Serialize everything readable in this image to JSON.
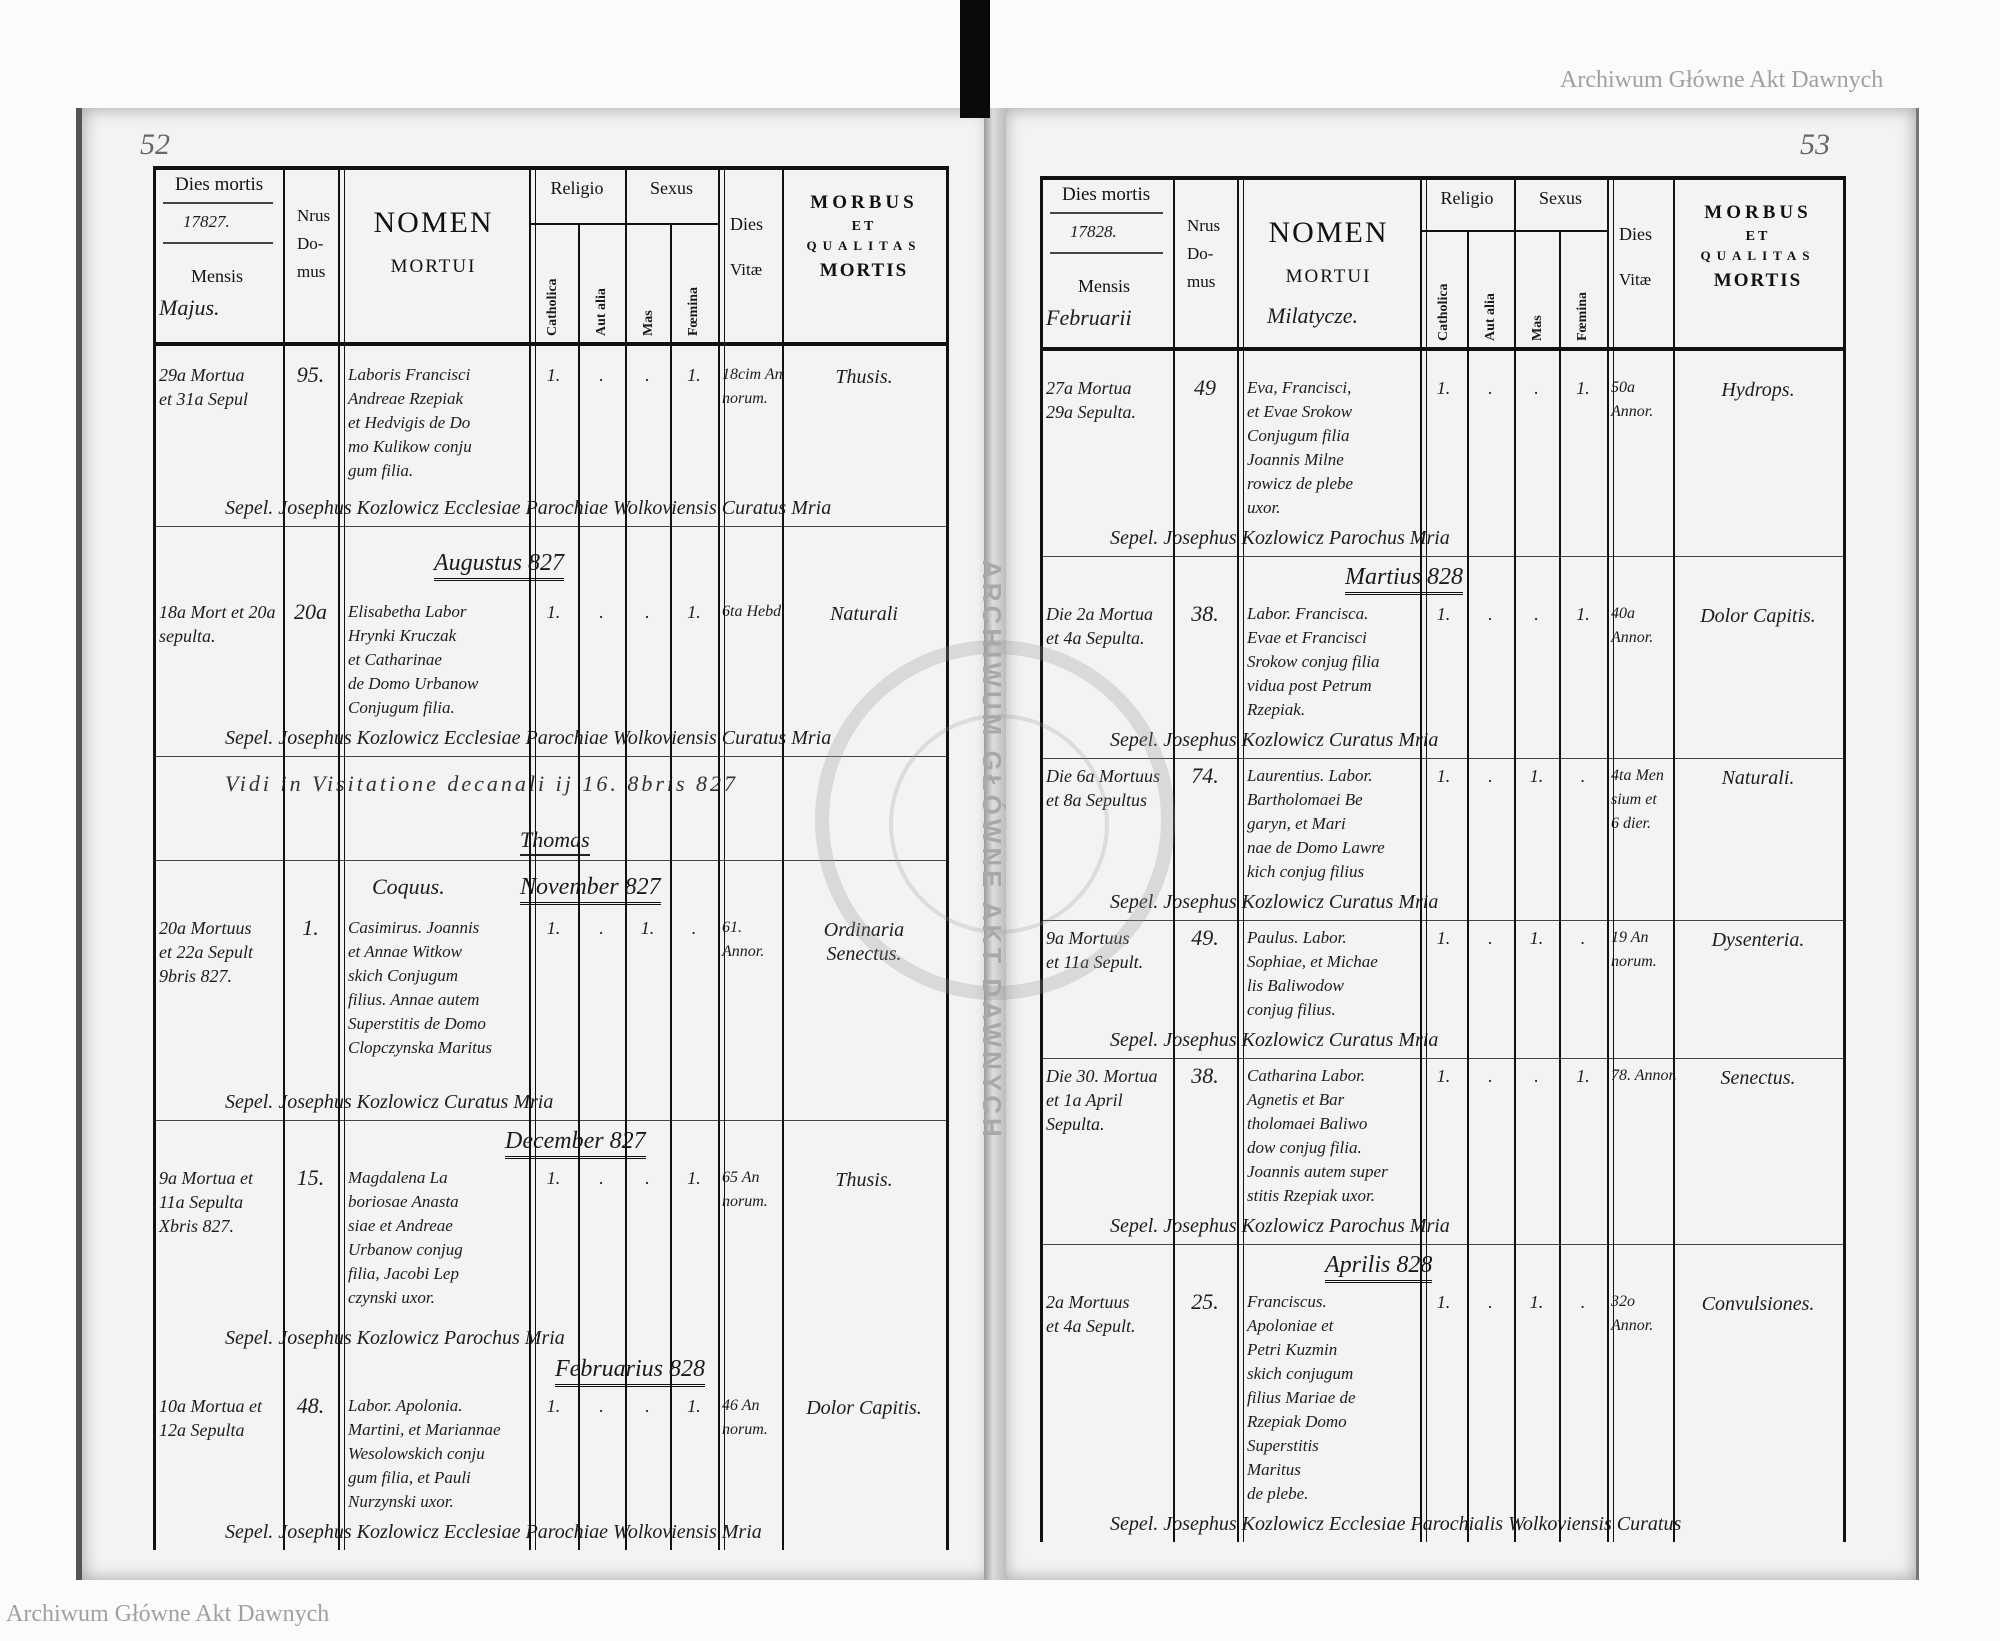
{
  "left_page": {
    "page_number": "52",
    "header": {
      "dies_mortis": "Dies mortis",
      "year": "17827.",
      "mensis": "Mensis",
      "month": "Majus.",
      "nrus": "Nrus",
      "do": "Do-",
      "mus": "mus",
      "nomen": "NOMEN",
      "mortui": "MORTUI",
      "place": "",
      "religio": "Religio",
      "sexus": "Sexus",
      "catholica": "Catholica",
      "aut_alia": "Aut alia",
      "mas": "Mas",
      "foemina": "Fœmina",
      "dies": "Dies",
      "vitae": "Vitæ",
      "morbus": "MORBUS",
      "et": "ET",
      "qualitas": "QUALITAS",
      "mortis": "MORTIS"
    },
    "months": [
      "Augustus 827",
      "November 827",
      "December 827",
      "Februarius 828"
    ],
    "occupation_note": "Coquus.",
    "visitation": "Vidi in Visitatione decanali ij 16. 8bris 827",
    "visitation_signature": "Thomas",
    "entries": [
      {
        "date": [
          "29a Mortua",
          "et 31a Sepul"
        ],
        "domus": "95.",
        "name": [
          "Laboris Francisci",
          "Andreae Rzepiak",
          "et Hedvigis de Do",
          "mo Kulikow conju",
          "gum filia."
        ],
        "catholica": "1.",
        "aut_alia": ".",
        "mas": ".",
        "foemina": "1.",
        "vitae": [
          "18cim An",
          "norum."
        ],
        "morbus": [
          "Thusis."
        ],
        "sepel": "Sepel. Josephus Kozlowicz Ecclesiae Parochiae Wolkoviensis Curatus Mria"
      },
      {
        "date": [
          "18a Mort et 20a",
          "sepulta."
        ],
        "domus": "20a",
        "name": [
          "Elisabetha Labor",
          "Hrynki Kruczak",
          "et Catharinae",
          "de Domo Urbanow",
          "Conjugum filia."
        ],
        "catholica": "1.",
        "aut_alia": ".",
        "mas": ".",
        "foemina": "1.",
        "vitae": [
          "6ta Hebd."
        ],
        "morbus": [
          "Naturali"
        ],
        "sepel": "Sepel. Josephus Kozlowicz Ecclesiae Parochiae Wolkoviensis Curatus Mria"
      },
      {
        "date": [
          "20a Mortuus",
          "et 22a Sepult",
          "9bris 827."
        ],
        "domus": "1.",
        "name": [
          "Casimirus. Joannis",
          "et Annae Witkow",
          "skich Conjugum",
          "filius. Annae autem",
          "Superstitis de Domo",
          "Clopczynska Maritus"
        ],
        "catholica": "1.",
        "aut_alia": ".",
        "mas": "1.",
        "foemina": ".",
        "vitae": [
          "61.",
          "Annor."
        ],
        "morbus": [
          "Ordinaria",
          "Senectus."
        ],
        "sepel": "Sepel. Josephus Kozlowicz Curatus Mria"
      },
      {
        "date": [
          "9a Mortua et",
          "11a Sepulta",
          "Xbris 827."
        ],
        "domus": "15.",
        "name": [
          "Magdalena La",
          "boriosae Anasta",
          "siae et Andreae",
          "Urbanow conjug",
          "filia, Jacobi Lep",
          "czynski uxor."
        ],
        "catholica": "1.",
        "aut_alia": ".",
        "mas": ".",
        "foemina": "1.",
        "vitae": [
          "65 An",
          "norum."
        ],
        "morbus": [
          "Thusis."
        ],
        "sepel": "Sepel. Josephus Kozlowicz Parochus Mria"
      },
      {
        "date": [
          "10a Mortua et",
          "12a Sepulta"
        ],
        "domus": "48.",
        "name": [
          "Labor. Apolonia.",
          "Martini, et Mariannae",
          "Wesolowskich conju",
          "gum filia, et Pauli",
          "Nurzynski uxor."
        ],
        "catholica": "1.",
        "aut_alia": ".",
        "mas": ".",
        "foemina": "1.",
        "vitae": [
          "46 An",
          "norum."
        ],
        "morbus": [
          "Dolor Capitis."
        ],
        "sepel": "Sepel. Josephus Kozlowicz Ecclesiae Parochiae Wolkoviensis Mria"
      }
    ]
  },
  "right_page": {
    "page_number": "53",
    "header": {
      "dies_mortis": "Dies mortis",
      "year": "17828.",
      "mensis": "Mensis",
      "month": "Februarii",
      "nrus": "Nrus",
      "do": "Do-",
      "mus": "mus",
      "nomen": "NOMEN",
      "mortui": "MORTUI",
      "place": "Milatycze.",
      "religio": "Religio",
      "sexus": "Sexus",
      "catholica": "Catholica",
      "aut_alia": "Aut alia",
      "mas": "Mas",
      "foemina": "Fœmina",
      "dies": "Dies",
      "vitae": "Vitæ",
      "morbus": "MORBUS",
      "et": "ET",
      "qualitas": "QUALITAS",
      "mortis": "MORTIS"
    },
    "months": [
      "Martius 828",
      "Aprilis 828"
    ],
    "entries": [
      {
        "date": [
          "27a Mortua",
          "29a Sepulta."
        ],
        "domus": "49",
        "name": [
          "Eva, Francisci,",
          "et Evae Srokow",
          "Conjugum filia",
          "Joannis Milne",
          "rowicz de plebe",
          "uxor."
        ],
        "catholica": "1.",
        "aut_alia": ".",
        "mas": ".",
        "foemina": "1.",
        "vitae": [
          "50a",
          "Annor."
        ],
        "morbus": [
          "Hydrops."
        ],
        "sepel": "Sepel. Josephus Kozlowicz Parochus Mria"
      },
      {
        "date": [
          "Die 2a Mortua",
          "et 4a Sepulta."
        ],
        "domus": "38.",
        "name": [
          "Labor. Francisca.",
          "Evae et Francisci",
          "Srokow conjug filia",
          "vidua post Petrum",
          "Rzepiak."
        ],
        "catholica": "1.",
        "aut_alia": ".",
        "mas": ".",
        "foemina": "1.",
        "vitae": [
          "40a",
          "Annor."
        ],
        "morbus": [
          "Dolor Capitis."
        ],
        "sepel": "Sepel. Josephus Kozlowicz Curatus Mria"
      },
      {
        "date": [
          "Die 6a Mortuus",
          "et 8a Sepultus"
        ],
        "domus": "74.",
        "name": [
          "Laurentius. Labor.",
          "Bartholomaei Be",
          "garyn, et Mari",
          "nae de Domo Lawre",
          "kich conjug filius"
        ],
        "catholica": "1.",
        "aut_alia": ".",
        "mas": "1.",
        "foemina": ".",
        "vitae": [
          "4ta Men",
          "sium et",
          "6 dier."
        ],
        "morbus": [
          "Naturali."
        ],
        "sepel": "Sepel. Josephus Kozlowicz Curatus Mria"
      },
      {
        "date": [
          "9a Mortuus",
          "et 11a Sepult."
        ],
        "domus": "49.",
        "name": [
          "Paulus. Labor.",
          "Sophiae, et Michae",
          "lis Baliwodow",
          "conjug filius."
        ],
        "catholica": "1.",
        "aut_alia": ".",
        "mas": "1.",
        "foemina": ".",
        "vitae": [
          "19 An",
          "norum."
        ],
        "morbus": [
          "Dysenteria."
        ],
        "sepel": "Sepel. Josephus Kozlowicz Curatus Mria"
      },
      {
        "date": [
          "Die 30. Mortua",
          "et 1a April",
          "Sepulta."
        ],
        "domus": "38.",
        "name": [
          "Catharina Labor.",
          "Agnetis et Bar",
          "tholomaei Baliwo",
          "dow conjug filia.",
          "Joannis autem super",
          "stitis Rzepiak uxor."
        ],
        "catholica": "1.",
        "aut_alia": ".",
        "mas": ".",
        "foemina": "1.",
        "vitae": [
          "78. Annor."
        ],
        "morbus": [
          "Senectus."
        ],
        "sepel": "Sepel. Josephus Kozlowicz Parochus Mria"
      },
      {
        "date": [
          "2a Mortuus",
          "et 4a Sepult."
        ],
        "domus": "25.",
        "name": [
          "Franciscus.",
          "Apoloniae et",
          "Petri Kuzmin",
          "skich conjugum",
          "filius Mariae de",
          "Rzepiak Domo",
          "Superstitis",
          "Maritus",
          "de plebe."
        ],
        "catholica": "1.",
        "aut_alia": ".",
        "mas": "1.",
        "foemina": ".",
        "vitae": [
          "32o",
          "Annor."
        ],
        "morbus": [
          "Convulsiones."
        ],
        "sepel": "Sepel. Josephus Kozlowicz Ecclesiae Parochialis Wolkoviensis Curatus"
      }
    ]
  },
  "watermark": {
    "text": "Archiwum Główne Akt Dawnych",
    "seal_text": "ARCHIWUM GŁÓWNE AKT DAWNYCH"
  }
}
